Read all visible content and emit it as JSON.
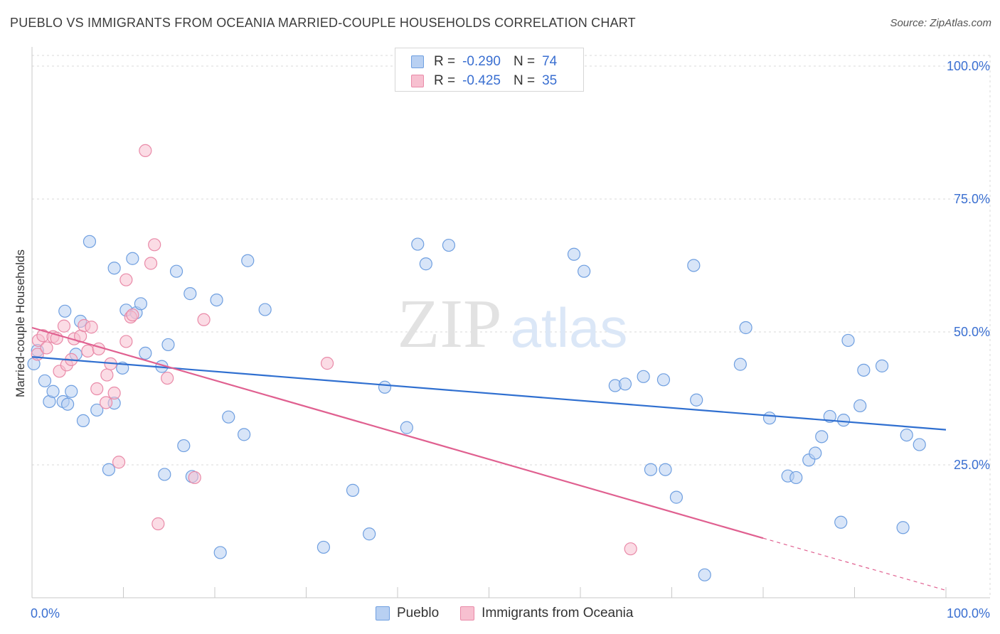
{
  "header": {
    "title": "PUEBLO VS IMMIGRANTS FROM OCEANIA MARRIED-COUPLE HOUSEHOLDS CORRELATION CHART",
    "source": "Source: ZipAtlas.com"
  },
  "watermark": {
    "zip": "ZIP",
    "atlas": "atlas"
  },
  "stats": {
    "pueblo": {
      "r_label": "R =",
      "r_value": "-0.290",
      "n_label": "N =",
      "n_value": "74"
    },
    "oceania": {
      "r_label": "R =",
      "r_value": "-0.425",
      "n_label": "N =",
      "n_value": "35"
    }
  },
  "legend": {
    "pueblo": "Pueblo",
    "oceania": "Immigrants from Oceania"
  },
  "colors": {
    "pueblo_fill": "#b8d0f2",
    "pueblo_stroke": "#6f9fe0",
    "pueblo_line": "#2f6fd0",
    "oceania_fill": "#f7c0d0",
    "oceania_stroke": "#e98aa8",
    "oceania_line": "#e06090",
    "tick_label": "#3a6fd1",
    "grid": "#d9d9d9"
  },
  "chart_data": {
    "type": "scatter",
    "title": "PUEBLO VS IMMIGRANTS FROM OCEANIA MARRIED-COUPLE HOUSEHOLDS CORRELATION CHART",
    "xlabel": "",
    "ylabel": "Married-couple Households",
    "xlim": [
      0,
      100
    ],
    "ylim": [
      0,
      102
    ],
    "x_tick_labels": [
      "0.0%",
      "100.0%"
    ],
    "y_ticks": [
      25,
      50,
      75,
      100
    ],
    "y_tick_labels": [
      "25.0%",
      "50.0%",
      "75.0%",
      "100.0%"
    ],
    "grid": true,
    "legend_position": "bottom-center",
    "series": [
      {
        "name": "Pueblo",
        "r": -0.29,
        "n": 74,
        "trend": {
          "x": [
            0,
            100
          ],
          "y": [
            45.3,
            31.6
          ]
        },
        "points": [
          [
            0.2,
            44
          ],
          [
            0.6,
            46.5
          ],
          [
            1.4,
            40.8
          ],
          [
            1.9,
            36.9
          ],
          [
            2.3,
            38.8
          ],
          [
            3.4,
            36.9
          ],
          [
            3.6,
            53.9
          ],
          [
            3.9,
            36.4
          ],
          [
            4.3,
            38.8
          ],
          [
            4.8,
            45.8
          ],
          [
            5.3,
            52
          ],
          [
            5.6,
            33.3
          ],
          [
            6.3,
            67
          ],
          [
            7.1,
            35.3
          ],
          [
            8.4,
            24.1
          ],
          [
            9.0,
            62
          ],
          [
            9.0,
            36.6
          ],
          [
            9.9,
            43.2
          ],
          [
            10.3,
            54.1
          ],
          [
            11.0,
            63.8
          ],
          [
            11.4,
            53.6
          ],
          [
            11.9,
            55.3
          ],
          [
            12.4,
            46
          ],
          [
            14.2,
            43.5
          ],
          [
            14.5,
            23.2
          ],
          [
            14.9,
            47.6
          ],
          [
            15.8,
            61.4
          ],
          [
            16.6,
            28.6
          ],
          [
            17.3,
            57.2
          ],
          [
            17.5,
            22.8
          ],
          [
            20.2,
            56
          ],
          [
            20.6,
            8.5
          ],
          [
            21.5,
            34
          ],
          [
            23.2,
            30.7
          ],
          [
            23.6,
            63.4
          ],
          [
            25.5,
            54.2
          ],
          [
            31.9,
            9.5
          ],
          [
            35.1,
            20.2
          ],
          [
            36.9,
            12
          ],
          [
            38.6,
            39.6
          ],
          [
            41.0,
            32
          ],
          [
            42.2,
            66.5
          ],
          [
            43.1,
            62.8
          ],
          [
            45.6,
            66.3
          ],
          [
            59.3,
            64.6
          ],
          [
            60.4,
            61.4
          ],
          [
            63.8,
            39.9
          ],
          [
            64.9,
            40.2
          ],
          [
            66.9,
            41.6
          ],
          [
            67.7,
            24.1
          ],
          [
            69.1,
            41
          ],
          [
            69.3,
            24.1
          ],
          [
            70.5,
            18.9
          ],
          [
            72.4,
            62.5
          ],
          [
            72.7,
            37.2
          ],
          [
            73.6,
            4.3
          ],
          [
            77.5,
            43.9
          ],
          [
            78.1,
            50.8
          ],
          [
            80.7,
            33.8
          ],
          [
            82.7,
            22.9
          ],
          [
            83.6,
            22.6
          ],
          [
            85.0,
            25.9
          ],
          [
            85.7,
            27.2
          ],
          [
            86.4,
            30.3
          ],
          [
            87.3,
            34.1
          ],
          [
            88.5,
            14.2
          ],
          [
            88.8,
            33.4
          ],
          [
            89.3,
            48.4
          ],
          [
            90.6,
            36.1
          ],
          [
            91.0,
            42.8
          ],
          [
            93.0,
            43.6
          ],
          [
            95.3,
            13.2
          ],
          [
            95.7,
            30.6
          ],
          [
            97.1,
            28.8
          ]
        ]
      },
      {
        "name": "Immigrants from Oceania",
        "r": -0.425,
        "n": 35,
        "trend": {
          "x": [
            0,
            80
          ],
          "y": [
            50.8,
            11.2
          ]
        },
        "dashed_extension": {
          "x": [
            80,
            100
          ],
          "y": [
            11.2,
            1.4
          ]
        },
        "points": [
          [
            0.6,
            45.8
          ],
          [
            0.7,
            48.4
          ],
          [
            1.2,
            49.3
          ],
          [
            1.6,
            47
          ],
          [
            2.3,
            49.1
          ],
          [
            2.7,
            48.8
          ],
          [
            3.0,
            42.6
          ],
          [
            3.5,
            51.1
          ],
          [
            3.8,
            43.8
          ],
          [
            4.3,
            44.8
          ],
          [
            4.6,
            48.7
          ],
          [
            5.3,
            49.2
          ],
          [
            5.7,
            51.2
          ],
          [
            6.1,
            46.4
          ],
          [
            6.5,
            50.9
          ],
          [
            7.1,
            39.3
          ],
          [
            7.3,
            46.8
          ],
          [
            8.1,
            36.7
          ],
          [
            8.2,
            41.9
          ],
          [
            8.6,
            44
          ],
          [
            9.0,
            38.5
          ],
          [
            9.5,
            25.5
          ],
          [
            10.3,
            59.8
          ],
          [
            10.3,
            48.2
          ],
          [
            10.8,
            52.8
          ],
          [
            11.0,
            53.2
          ],
          [
            12.4,
            84.1
          ],
          [
            13.0,
            62.9
          ],
          [
            13.4,
            66.4
          ],
          [
            13.8,
            13.9
          ],
          [
            14.8,
            41.3
          ],
          [
            17.8,
            22.6
          ],
          [
            18.8,
            52.3
          ],
          [
            32.3,
            44.1
          ],
          [
            65.5,
            9.2
          ]
        ]
      }
    ]
  }
}
